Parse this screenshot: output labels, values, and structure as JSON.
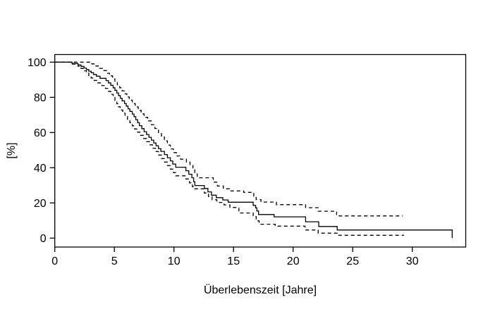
{
  "figure": {
    "background_color": "#ffffff",
    "line_color": "#000000",
    "title": ""
  },
  "chart_data": {
    "type": "line",
    "subtype": "kaplan-meier-step-function",
    "title": "",
    "xlabel": "Überlebenszeit [Jahre]",
    "ylabel": "[%]",
    "xlim": [
      0,
      34.5
    ],
    "ylim": [
      0,
      100
    ],
    "x_ticks": [
      0,
      5,
      10,
      15,
      20,
      25,
      30
    ],
    "y_ticks": [
      0,
      20,
      40,
      60,
      80,
      100
    ],
    "grid": false,
    "legend_position": "none",
    "frame": "full-box",
    "series": [
      {
        "name": "survival-estimate",
        "style": "solid",
        "end_time": 33.35,
        "end_drop_to": 0,
        "points": [
          [
            0,
            100
          ],
          [
            1.45,
            99.2
          ],
          [
            1.95,
            98.4
          ],
          [
            2.2,
            97.6
          ],
          [
            2.45,
            96.7
          ],
          [
            2.65,
            95.8
          ],
          [
            2.85,
            94.9
          ],
          [
            3.05,
            94.0
          ],
          [
            3.25,
            93.0
          ],
          [
            3.5,
            92.0
          ],
          [
            3.8,
            90.8
          ],
          [
            4.3,
            89.5
          ],
          [
            4.5,
            88.2
          ],
          [
            4.7,
            86.8
          ],
          [
            4.9,
            85.4
          ],
          [
            5.05,
            84.0
          ],
          [
            5.2,
            82.5
          ],
          [
            5.35,
            81.0
          ],
          [
            5.5,
            79.5
          ],
          [
            5.65,
            78.0
          ],
          [
            5.85,
            76.5
          ],
          [
            6.0,
            75.0
          ],
          [
            6.15,
            73.5
          ],
          [
            6.3,
            72.0
          ],
          [
            6.5,
            70.5
          ],
          [
            6.65,
            69.0
          ],
          [
            6.8,
            67.3
          ],
          [
            6.95,
            65.6
          ],
          [
            7.1,
            63.9
          ],
          [
            7.3,
            62.2
          ],
          [
            7.5,
            60.5
          ],
          [
            7.7,
            58.9
          ],
          [
            7.9,
            57.3
          ],
          [
            8.1,
            55.7
          ],
          [
            8.3,
            54.1
          ],
          [
            8.5,
            52.5
          ],
          [
            8.7,
            50.9
          ],
          [
            8.9,
            49.3
          ],
          [
            9.2,
            47.5
          ],
          [
            9.45,
            45.7
          ],
          [
            9.7,
            43.9
          ],
          [
            9.9,
            42.1
          ],
          [
            10.15,
            40.3
          ],
          [
            11.0,
            38.3
          ],
          [
            11.25,
            36.3
          ],
          [
            11.5,
            34.3
          ],
          [
            11.65,
            32.1
          ],
          [
            11.75,
            29.9
          ],
          [
            12.55,
            28.2
          ],
          [
            12.85,
            26.3
          ],
          [
            13.15,
            24.4
          ],
          [
            13.55,
            23.0
          ],
          [
            14.1,
            21.7
          ],
          [
            14.55,
            20.4
          ],
          [
            16.65,
            18.6
          ],
          [
            16.85,
            17.2
          ],
          [
            16.95,
            15.4
          ],
          [
            17.1,
            13.4
          ],
          [
            18.4,
            12.1
          ],
          [
            21.05,
            9.3
          ],
          [
            22.15,
            6.6
          ],
          [
            23.7,
            4.6
          ]
        ]
      },
      {
        "name": "upper-95-percent-ci",
        "style": "dashed",
        "end_time": 29.2,
        "end_drop_to": null,
        "points": [
          [
            0,
            100
          ],
          [
            3.1,
            99.0
          ],
          [
            3.45,
            97.8
          ],
          [
            3.75,
            96.5
          ],
          [
            4.05,
            95.2
          ],
          [
            4.35,
            93.7
          ],
          [
            4.6,
            92.2
          ],
          [
            4.85,
            90.5
          ],
          [
            5.05,
            88.8
          ],
          [
            5.25,
            87.1
          ],
          [
            5.45,
            85.4
          ],
          [
            5.65,
            83.7
          ],
          [
            5.85,
            82.0
          ],
          [
            6.05,
            80.2
          ],
          [
            6.25,
            78.4
          ],
          [
            6.5,
            76.5
          ],
          [
            6.75,
            74.6
          ],
          [
            7.0,
            72.6
          ],
          [
            7.25,
            70.6
          ],
          [
            7.5,
            68.6
          ],
          [
            7.8,
            66.6
          ],
          [
            8.1,
            64.5
          ],
          [
            8.4,
            62.3
          ],
          [
            8.7,
            59.9
          ],
          [
            8.95,
            57.5
          ],
          [
            9.2,
            55.2
          ],
          [
            9.45,
            52.9
          ],
          [
            9.7,
            50.7
          ],
          [
            9.95,
            48.6
          ],
          [
            10.2,
            46.7
          ],
          [
            10.55,
            44.9
          ],
          [
            11.05,
            43.2
          ],
          [
            11.35,
            41.2
          ],
          [
            11.6,
            38.9
          ],
          [
            11.75,
            36.5
          ],
          [
            11.95,
            34.3
          ],
          [
            13.3,
            31.8
          ],
          [
            13.65,
            29.6
          ],
          [
            14.15,
            28.0
          ],
          [
            14.65,
            26.8
          ],
          [
            15.85,
            26.0
          ],
          [
            16.7,
            23.8
          ],
          [
            16.9,
            21.9
          ],
          [
            17.3,
            20.5
          ],
          [
            18.6,
            19.0
          ],
          [
            21.05,
            17.3
          ],
          [
            22.1,
            15.3
          ],
          [
            23.65,
            12.6
          ]
        ]
      },
      {
        "name": "lower-95-percent-ci",
        "style": "dashed",
        "end_time": 29.3,
        "end_drop_to": null,
        "points": [
          [
            0,
            100
          ],
          [
            1.3,
            98.9
          ],
          [
            1.95,
            97.7
          ],
          [
            2.2,
            96.4
          ],
          [
            2.45,
            95.1
          ],
          [
            2.65,
            93.8
          ],
          [
            2.85,
            92.4
          ],
          [
            3.05,
            91.0
          ],
          [
            3.3,
            89.6
          ],
          [
            3.55,
            88.2
          ],
          [
            3.95,
            86.7
          ],
          [
            4.25,
            85.1
          ],
          [
            4.5,
            83.4
          ],
          [
            4.7,
            81.7
          ],
          [
            4.9,
            80.0
          ],
          [
            5.05,
            78.2
          ],
          [
            5.2,
            76.4
          ],
          [
            5.35,
            74.6
          ],
          [
            5.5,
            72.8
          ],
          [
            5.7,
            71.0
          ],
          [
            5.9,
            69.2
          ],
          [
            6.1,
            67.4
          ],
          [
            6.3,
            65.6
          ],
          [
            6.5,
            63.8
          ],
          [
            6.7,
            62.0
          ],
          [
            6.95,
            60.2
          ],
          [
            7.2,
            58.4
          ],
          [
            7.45,
            56.6
          ],
          [
            7.7,
            54.8
          ],
          [
            7.95,
            53.0
          ],
          [
            8.2,
            51.1
          ],
          [
            8.45,
            49.2
          ],
          [
            8.7,
            47.2
          ],
          [
            8.95,
            45.2
          ],
          [
            9.2,
            43.2
          ],
          [
            9.45,
            41.2
          ],
          [
            9.7,
            39.2
          ],
          [
            9.95,
            37.2
          ],
          [
            10.15,
            35.4
          ],
          [
            11.0,
            33.6
          ],
          [
            11.3,
            31.4
          ],
          [
            11.55,
            29.2
          ],
          [
            11.75,
            28.0
          ],
          [
            12.55,
            25.6
          ],
          [
            12.9,
            23.6
          ],
          [
            13.2,
            21.8
          ],
          [
            13.6,
            20.3
          ],
          [
            14.2,
            18.9
          ],
          [
            14.7,
            17.4
          ],
          [
            15.45,
            14.3
          ],
          [
            16.65,
            12.3
          ],
          [
            16.9,
            9.8
          ],
          [
            17.15,
            7.9
          ],
          [
            18.5,
            6.8
          ],
          [
            21.0,
            4.6
          ],
          [
            22.1,
            2.8
          ],
          [
            23.7,
            1.6
          ]
        ]
      }
    ]
  }
}
